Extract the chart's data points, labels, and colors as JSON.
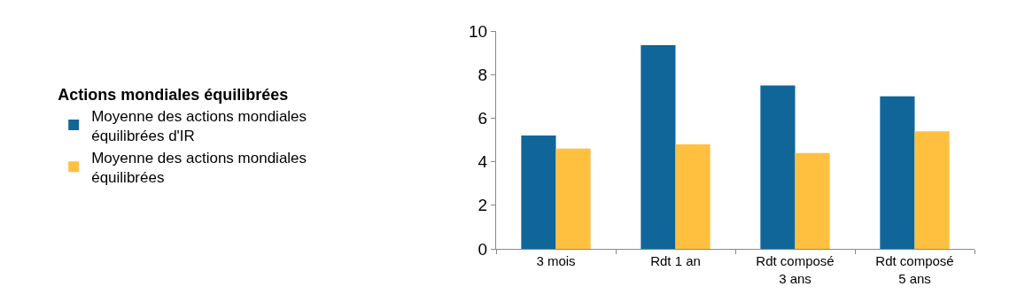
{
  "chart_data": {
    "type": "bar",
    "legend_title": "Actions mondiales équilibrées",
    "categories": [
      "3 mois",
      "Rdt 1 an",
      "Rdt composé 3 ans",
      "Rdt composé 5 ans"
    ],
    "series": [
      {
        "name": "Moyenne des actions mondiales équilibrées d'IR",
        "color": "#116699",
        "values": [
          5.2,
          9.35,
          7.5,
          7.0
        ]
      },
      {
        "name": "Moyenne des actions mondiales équilibrées",
        "color": "#ffc040",
        "values": [
          4.6,
          4.8,
          4.4,
          5.4
        ]
      }
    ],
    "ylim": [
      0,
      10
    ],
    "yticks": [
      0,
      2,
      4,
      6,
      8,
      10
    ],
    "legend": "left"
  }
}
